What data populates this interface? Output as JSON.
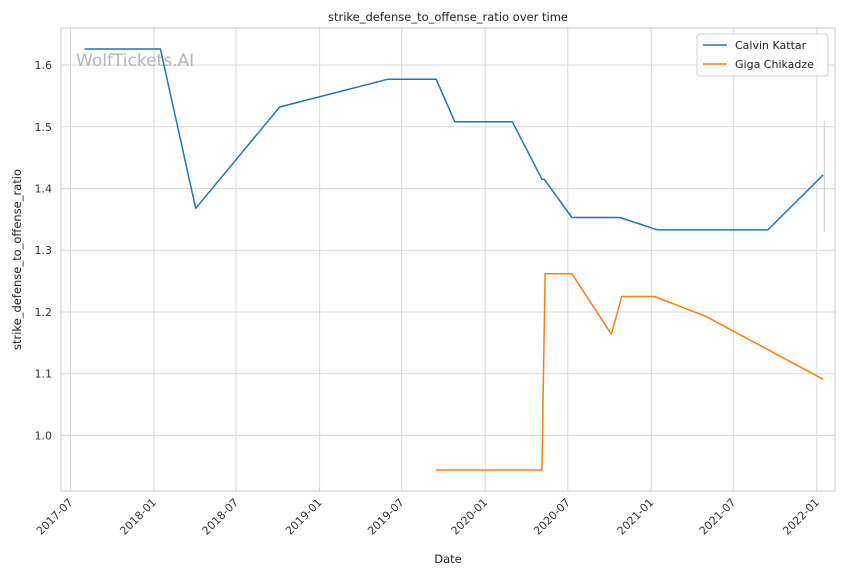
{
  "watermark": "WolfTickets.AI",
  "chart_data": {
    "type": "line",
    "title": "strike_defense_to_offense_ratio over time",
    "xlabel": "Date",
    "ylabel": "strike_defense_to_offense_ratio",
    "x_ticks": [
      "2017-07",
      "2018-01",
      "2018-07",
      "2019-01",
      "2019-07",
      "2020-01",
      "2020-07",
      "2021-01",
      "2021-07",
      "2022-01"
    ],
    "y_ticks": [
      "1.0",
      "1.1",
      "1.2",
      "1.3",
      "1.4",
      "1.5",
      "1.6"
    ],
    "xlim": [
      "2017-06-10",
      "2022-02-10"
    ],
    "ylim": [
      0.91,
      1.66
    ],
    "grid": true,
    "legend_position": "top-right",
    "series": [
      {
        "name": "Calvin Kattar",
        "color": "#1f77b4",
        "points": [
          {
            "x": "2017-08-01",
            "y": 1.626
          },
          {
            "x": "2018-01-15",
            "y": 1.626
          },
          {
            "x": "2018-04-03",
            "y": 1.368
          },
          {
            "x": "2018-10-05",
            "y": 1.532
          },
          {
            "x": "2019-06-01",
            "y": 1.577
          },
          {
            "x": "2019-09-15",
            "y": 1.577
          },
          {
            "x": "2019-10-26",
            "y": 1.508
          },
          {
            "x": "2020-03-01",
            "y": 1.508
          },
          {
            "x": "2020-05-05",
            "y": 1.415
          },
          {
            "x": "2020-05-10",
            "y": 1.415
          },
          {
            "x": "2020-07-10",
            "y": 1.353
          },
          {
            "x": "2020-10-24",
            "y": 1.353
          },
          {
            "x": "2021-01-15",
            "y": 1.333
          },
          {
            "x": "2021-09-15",
            "y": 1.333
          },
          {
            "x": "2022-01-15",
            "y": 1.422
          }
        ]
      },
      {
        "name": "Giga Chikadze",
        "color": "#ff7f0e",
        "points": [
          {
            "x": "2019-09-15",
            "y": 0.944
          },
          {
            "x": "2020-05-05",
            "y": 0.944
          },
          {
            "x": "2020-05-12",
            "y": 1.262
          },
          {
            "x": "2020-07-10",
            "y": 1.262
          },
          {
            "x": "2020-10-05",
            "y": 1.164
          },
          {
            "x": "2020-10-28",
            "y": 1.225
          },
          {
            "x": "2021-01-08",
            "y": 1.225
          },
          {
            "x": "2021-05-01",
            "y": 1.193
          },
          {
            "x": "2022-01-15",
            "y": 1.091
          }
        ]
      }
    ]
  }
}
